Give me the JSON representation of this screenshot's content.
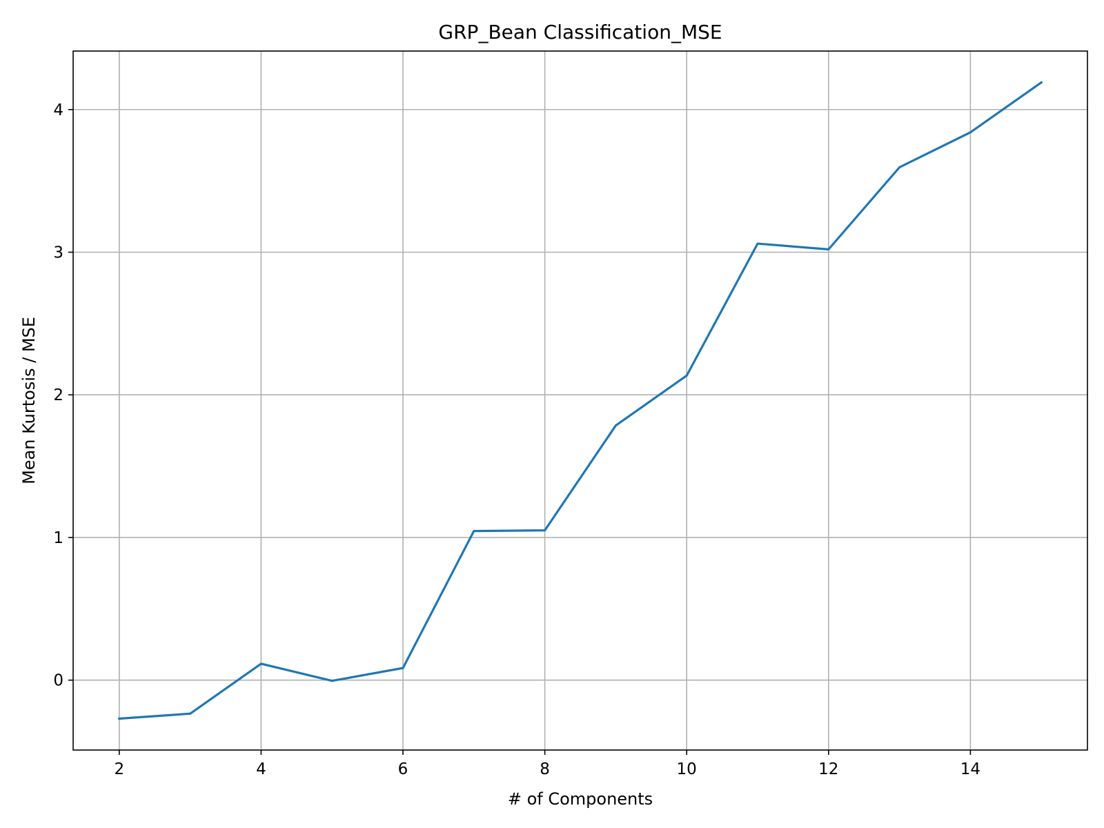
{
  "chart_data": {
    "type": "line",
    "title": "GRP_Bean Classification_MSE",
    "xlabel": "# of Components",
    "ylabel": "Mean Kurtosis / MSE",
    "xlim": [
      1.35,
      15.65
    ],
    "ylim": [
      -0.49,
      4.41
    ],
    "x_ticks": [
      2,
      4,
      6,
      8,
      10,
      12,
      14
    ],
    "x_tick_labels": [
      "2",
      "4",
      "6",
      "8",
      "10",
      "12",
      "14"
    ],
    "y_ticks": [
      0,
      1,
      2,
      3,
      4
    ],
    "y_tick_labels": [
      "0",
      "1",
      "2",
      "3",
      "4"
    ],
    "grid": true,
    "series": [
      {
        "color": "#1f77b4",
        "x": [
          2,
          3,
          4,
          5,
          6,
          7,
          8,
          9,
          10,
          11,
          12,
          13,
          14,
          15
        ],
        "y": [
          -0.27,
          -0.235,
          0.115,
          -0.005,
          0.085,
          1.045,
          1.05,
          1.785,
          2.135,
          3.06,
          3.02,
          3.595,
          3.84,
          4.19
        ]
      }
    ]
  }
}
